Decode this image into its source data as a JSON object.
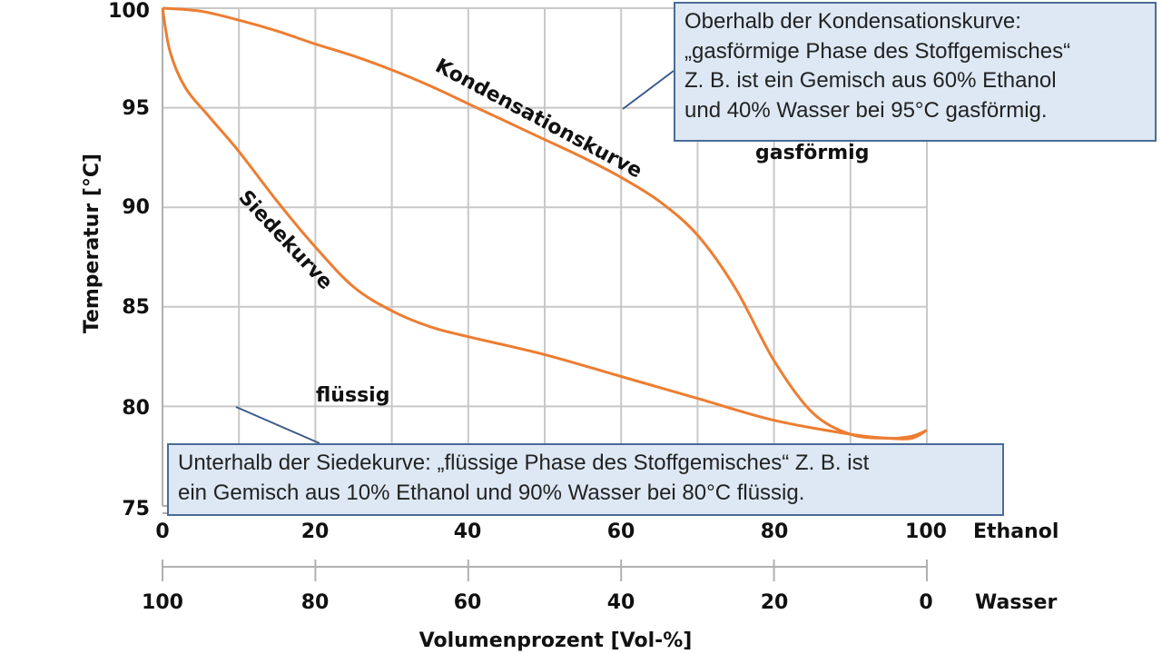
{
  "chart_data": {
    "type": "line",
    "xlabel": "Volumenprozent [Vol-%]",
    "ylabel": "Temperatur [°C]",
    "xlim": [
      0,
      100
    ],
    "ylim": [
      75,
      100
    ],
    "x_ticks": [
      "0",
      "20",
      "40",
      "60",
      "80",
      "100"
    ],
    "x_axis_name": "Ethanol",
    "x2_ticks": [
      "100",
      "80",
      "60",
      "40",
      "20",
      "0"
    ],
    "x2_axis_name": "Wasser",
    "y_ticks": [
      "75",
      "80",
      "85",
      "90",
      "95",
      "100"
    ],
    "grid": true,
    "series": [
      {
        "name": "Kondensationskurve",
        "color": "#ed7d31",
        "x": [
          0,
          5,
          10,
          15,
          20,
          25,
          30,
          35,
          40,
          45,
          50,
          55,
          60,
          65,
          70,
          75,
          80,
          85,
          90,
          95,
          98,
          100
        ],
        "y": [
          100.0,
          99.85,
          99.4,
          98.85,
          98.2,
          97.6,
          96.9,
          96.1,
          95.2,
          94.3,
          93.4,
          92.5,
          91.5,
          90.3,
          88.6,
          85.9,
          82.3,
          79.7,
          78.6,
          78.4,
          78.5,
          78.8
        ]
      },
      {
        "name": "Siedekurve",
        "color": "#ed7d31",
        "x": [
          0,
          1,
          3,
          6,
          10,
          15,
          20,
          25,
          30,
          35,
          40,
          50,
          60,
          70,
          80,
          90,
          95,
          98,
          100
        ],
        "y": [
          100.0,
          97.8,
          96.0,
          94.6,
          92.8,
          90.3,
          88.0,
          86.0,
          84.8,
          84.0,
          83.5,
          82.6,
          81.5,
          80.4,
          79.3,
          78.6,
          78.4,
          78.4,
          78.8
        ]
      }
    ],
    "curve_labels": [
      "Kondensationskurve",
      "Siedekurve"
    ],
    "region_labels": [
      "gasförmig",
      "flüssig"
    ]
  },
  "callouts": {
    "top": {
      "line1": "Oberhalb der Kondensationskurve:",
      "line2": "„gasförmige Phase des Stoffgemisches“",
      "line3": "Z. B. ist ein Gemisch aus 60% Ethanol",
      "line4": "und 40% Wasser bei 95°C gasförmig."
    },
    "bottom": {
      "line1": "Unterhalb der Siedekurve: „flüssige Phase des Stoffgemisches“ Z. B. ist",
      "line2": "ein Gemisch aus 10% Ethanol und 90% Wasser bei 80°C flüssig."
    }
  }
}
